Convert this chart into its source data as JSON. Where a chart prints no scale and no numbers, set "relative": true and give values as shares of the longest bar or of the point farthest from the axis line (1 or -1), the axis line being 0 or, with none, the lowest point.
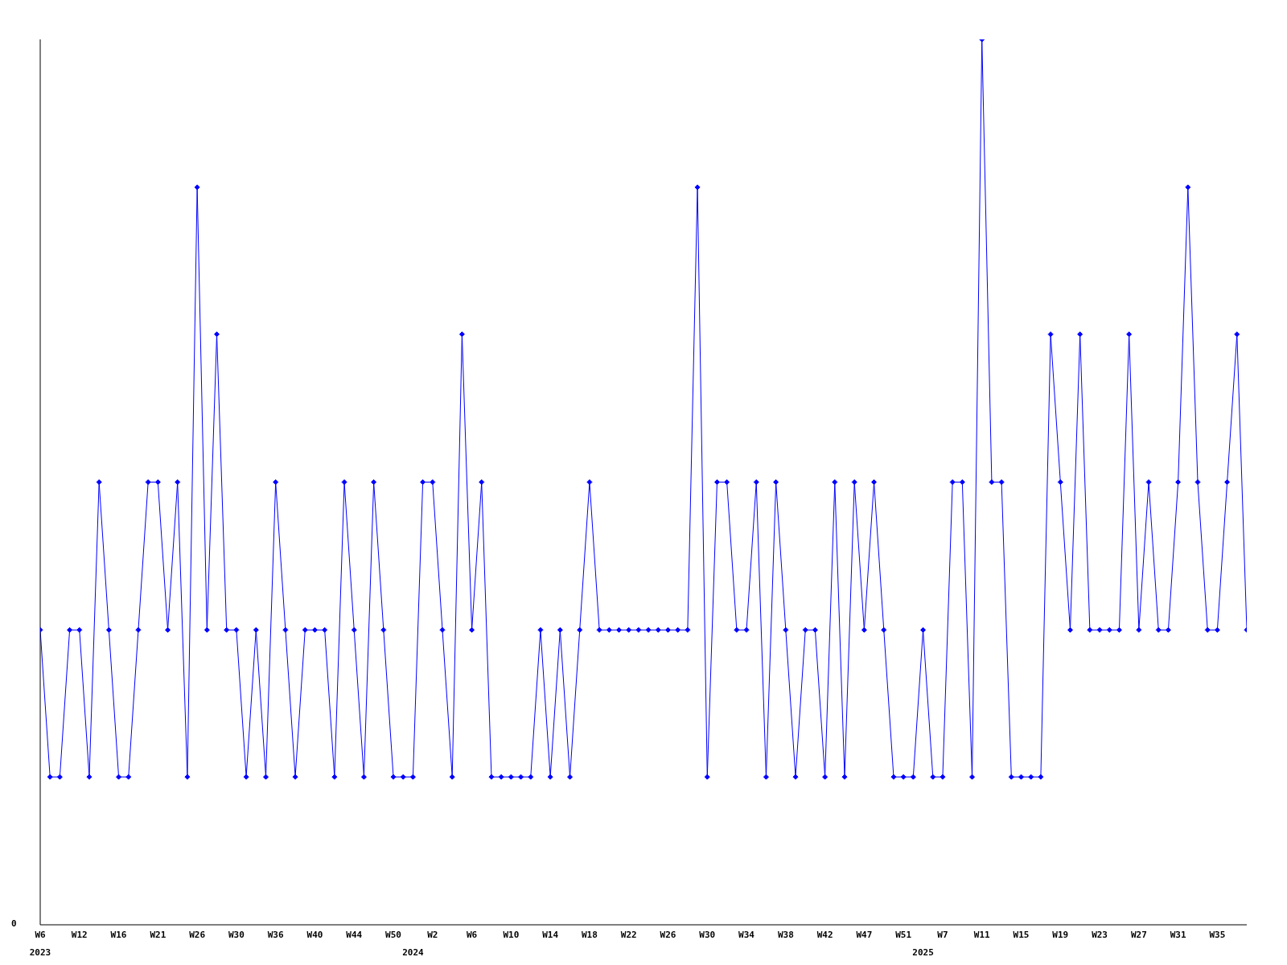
{
  "chart_data": {
    "type": "line",
    "relative": true,
    "categories": [
      "W6",
      null,
      null,
      null,
      "W12",
      null,
      null,
      null,
      "W16",
      null,
      null,
      null,
      "W21",
      null,
      null,
      null,
      "W26",
      null,
      null,
      null,
      "W30",
      null,
      null,
      null,
      "W36",
      null,
      null,
      null,
      "W40",
      null,
      null,
      null,
      "W44",
      null,
      null,
      null,
      "W50",
      null,
      null,
      null,
      "W2",
      null,
      null,
      null,
      "W6",
      null,
      null,
      null,
      "W10",
      null,
      null,
      null,
      "W14",
      null,
      null,
      null,
      "W18",
      null,
      null,
      null,
      "W22",
      null,
      null,
      null,
      "W26",
      null,
      null,
      null,
      "W30",
      null,
      null,
      null,
      "W34",
      null,
      null,
      null,
      "W38",
      null,
      null,
      null,
      "W42",
      null,
      null,
      null,
      "W47",
      null,
      null,
      null,
      "W51",
      null,
      null,
      null,
      "W7",
      null,
      null,
      null,
      "W11",
      null,
      null,
      null,
      "W15",
      null,
      null,
      null,
      "W19",
      null,
      null,
      null,
      "W23",
      null,
      null,
      null,
      "W27",
      null,
      null,
      null,
      "W31",
      null,
      null,
      null,
      "W35",
      null,
      null,
      null
    ],
    "series": [
      {
        "color": "#0000ff",
        "values": [
          0.333,
          0.167,
          0.167,
          0.333,
          0.333,
          0.167,
          0.5,
          0.333,
          0.167,
          0.167,
          0.333,
          0.5,
          0.5,
          0.333,
          0.5,
          0.167,
          0.833,
          0.333,
          0.667,
          0.333,
          0.333,
          0.167,
          0.333,
          0.167,
          0.5,
          0.333,
          0.167,
          0.333,
          0.333,
          0.333,
          0.167,
          0.5,
          0.333,
          0.167,
          0.5,
          0.333,
          0.167,
          0.167,
          0.167,
          0.5,
          0.5,
          0.333,
          0.167,
          0.667,
          0.333,
          0.5,
          0.167,
          0.167,
          0.167,
          0.167,
          0.167,
          0.333,
          0.167,
          0.333,
          0.167,
          0.333,
          0.5,
          0.333,
          0.333,
          0.333,
          0.333,
          0.333,
          0.333,
          0.333,
          0.333,
          0.333,
          0.333,
          0.833,
          0.167,
          0.5,
          0.5,
          0.333,
          0.333,
          0.5,
          0.167,
          0.5,
          0.333,
          0.167,
          0.333,
          0.333,
          0.167,
          0.5,
          0.167,
          0.5,
          0.333,
          0.5,
          0.333,
          0.167,
          0.167,
          0.167,
          0.333,
          0.167,
          0.167,
          0.5,
          0.5,
          0.167,
          1,
          0.5,
          0.5,
          0.167,
          0.167,
          0.167,
          0.167,
          0.667,
          0.5,
          0.333,
          0.667,
          0.333,
          0.333,
          0.333,
          0.333,
          0.667,
          0.333,
          0.5,
          0.333,
          0.333,
          0.5,
          0.833,
          0.5,
          0.333,
          0.333,
          0.5,
          0.667,
          0.333
        ]
      }
    ],
    "annotations": [
      "0",
      "2023",
      "2024",
      "2025"
    ],
    "marker": "diamond",
    "line_style": "solid",
    "grid": false,
    "legend": false
  }
}
